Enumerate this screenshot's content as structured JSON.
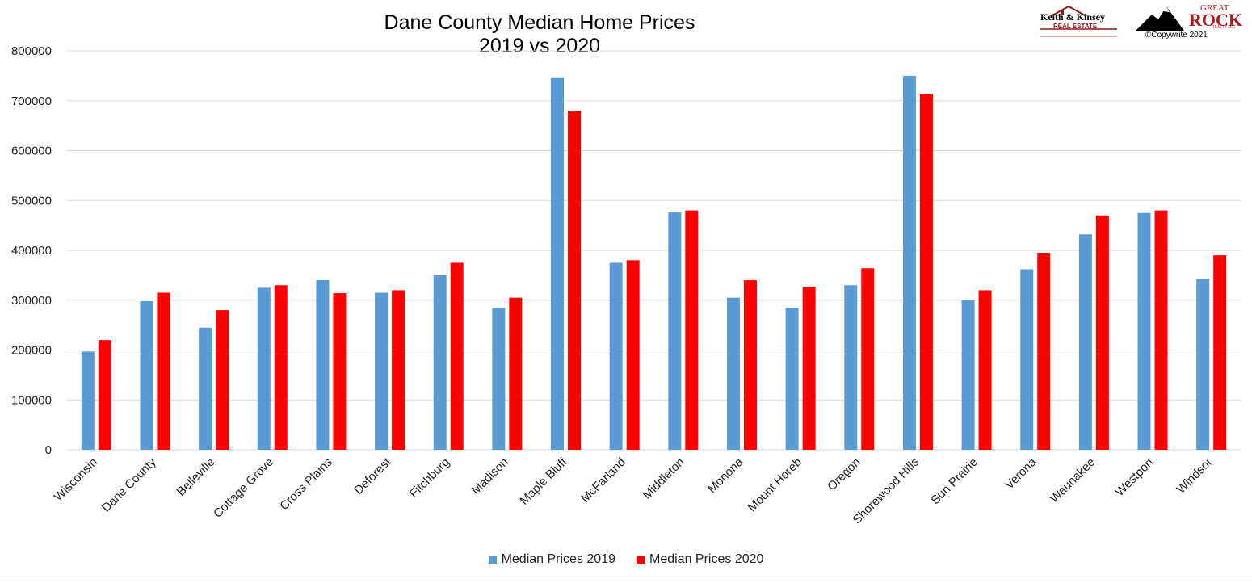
{
  "colors": {
    "series_2019": "#5b9bd5",
    "series_2020": "#ff0000",
    "grid": "#d9d9d9"
  },
  "logos": {
    "keith_kinsey_name": "Keith & Kinsey",
    "keith_kinsey_sub": "REAL ESTATE",
    "great_rock_top": "GREAT",
    "great_rock_main": "ROCK",
    "great_rock_sub": "REALTY LLC",
    "copyright": "©Copywrite 2021"
  },
  "chart_data": {
    "type": "bar",
    "title": "Dane County Median Home Prices 2019 vs 2020",
    "xlabel": "",
    "ylabel": "",
    "ylim": [
      0,
      800000
    ],
    "yticks": [
      "0",
      "100000",
      "200000",
      "300000",
      "400000",
      "500000",
      "600000",
      "700000",
      "800000"
    ],
    "grid": true,
    "legend_position": "bottom",
    "categories": [
      "Wisconsin",
      "Dane County",
      "Belleville",
      "Cottage Grove",
      "Cross Plains",
      "Deforest",
      "Fitchburg",
      "Madison",
      "Maple Bluff",
      "McFarland",
      "Middleton",
      "Monona",
      "Mount Horeb",
      "Oregon",
      "Shorewood Hills",
      "Sun Prairie",
      "Verona",
      "Waunakee",
      "Westport",
      "Windsor"
    ],
    "series": [
      {
        "name": "Median Prices 2019",
        "values": [
          197000,
          298000,
          245000,
          325000,
          340000,
          315000,
          350000,
          285000,
          747000,
          375000,
          476000,
          305000,
          285000,
          330000,
          750000,
          300000,
          362000,
          432000,
          475000,
          343000
        ]
      },
      {
        "name": "Median Prices 2020",
        "values": [
          220000,
          315000,
          280000,
          330000,
          314000,
          320000,
          375000,
          305000,
          680000,
          380000,
          480000,
          340000,
          327000,
          364000,
          713000,
          320000,
          395000,
          470000,
          480000,
          390000
        ]
      }
    ]
  }
}
